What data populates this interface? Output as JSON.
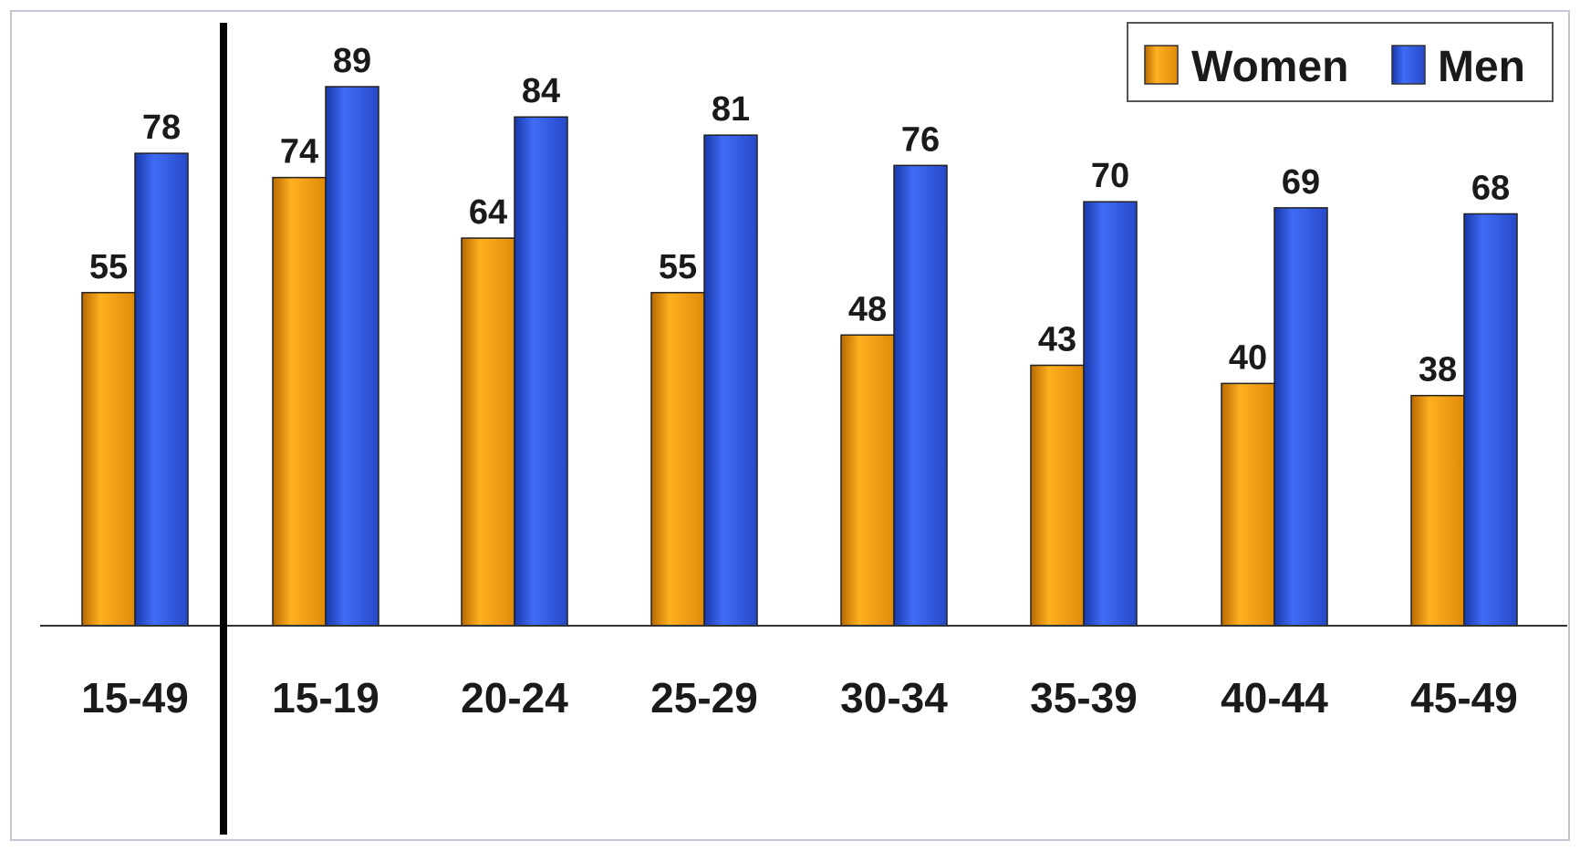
{
  "chart_data": {
    "type": "bar",
    "categories": [
      "15-49",
      "15-19",
      "20-24",
      "25-29",
      "30-34",
      "35-39",
      "40-44",
      "45-49"
    ],
    "series": [
      {
        "name": "Women",
        "values": [
          55,
          74,
          64,
          55,
          48,
          43,
          40,
          38
        ],
        "color": "#F39C12"
      },
      {
        "name": "Men",
        "values": [
          78,
          89,
          84,
          81,
          76,
          70,
          69,
          68
        ],
        "color": "#2E5BE6"
      }
    ],
    "ylim": [
      0,
      100
    ],
    "grid": false,
    "legend_position": "top-right",
    "separator_after_category": "15-49",
    "title": "",
    "xlabel": "",
    "ylabel": ""
  }
}
